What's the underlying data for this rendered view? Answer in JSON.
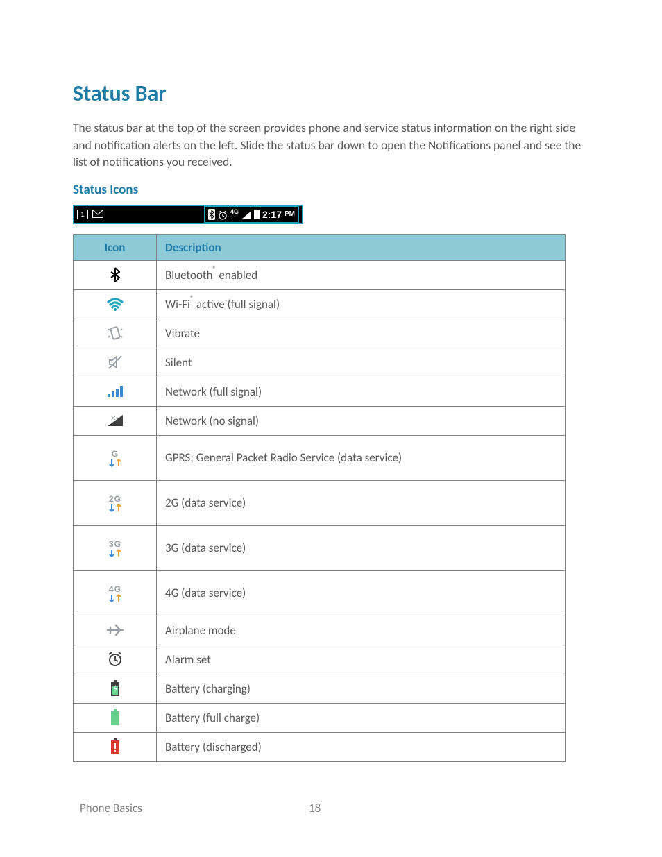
{
  "heading": "Status Bar",
  "intro": "The status bar at the top of the screen provides phone and service status information on the right side and notification alerts on the left. Slide the status bar down to open the Notifications panel and see the list of notifications you received.",
  "subheading": "Status Icons",
  "statusbar": {
    "time": "2:17",
    "ampm": "PM",
    "net_label": "4G"
  },
  "colors": {
    "heading": "#1f7ba6",
    "text": "#595959",
    "table_header_bg": "#8ec9d6",
    "border": "#808080",
    "cyan": "#1fa3bf",
    "signal_blue": "#3b8bd4",
    "green": "#65d08c",
    "red": "#d83a2f",
    "grey_icon": "#9aa0a6"
  },
  "table": {
    "header_icon": "Icon",
    "header_desc": "Description"
  },
  "rows": [
    {
      "icon_name": "bluetooth-icon",
      "desc_pre": "Bluetooth",
      "reg": true,
      "desc_post": " enabled",
      "tall": false
    },
    {
      "icon_name": "wifi-icon",
      "desc_pre": "Wi-Fi",
      "reg": true,
      "desc_post": " active (full signal)",
      "tall": false
    },
    {
      "icon_name": "vibrate-icon",
      "desc_pre": "Vibrate",
      "reg": false,
      "desc_post": "",
      "tall": false
    },
    {
      "icon_name": "silent-icon",
      "desc_pre": "Silent",
      "reg": false,
      "desc_post": "",
      "tall": false
    },
    {
      "icon_name": "signal-full-icon",
      "desc_pre": "Network (full signal)",
      "reg": false,
      "desc_post": "",
      "tall": false
    },
    {
      "icon_name": "signal-none-icon",
      "desc_pre": "Network (no signal)",
      "reg": false,
      "desc_post": "",
      "tall": false
    },
    {
      "icon_name": "gprs-icon",
      "desc_pre": "GPRS; General Packet Radio Service (data service)",
      "reg": false,
      "desc_post": "",
      "tall": true
    },
    {
      "icon_name": "2g-icon",
      "desc_pre": "2G (data service)",
      "reg": false,
      "desc_post": "",
      "tall": true
    },
    {
      "icon_name": "3g-icon",
      "desc_pre": "3G (data service)",
      "reg": false,
      "desc_post": "",
      "tall": true
    },
    {
      "icon_name": "4g-icon",
      "desc_pre": "4G (data service)",
      "reg": false,
      "desc_post": "",
      "tall": true
    },
    {
      "icon_name": "airplane-icon",
      "desc_pre": "Airplane mode",
      "reg": false,
      "desc_post": "",
      "tall": false
    },
    {
      "icon_name": "alarm-icon",
      "desc_pre": "Alarm set",
      "reg": false,
      "desc_post": "",
      "tall": false
    },
    {
      "icon_name": "battery-charging-icon",
      "desc_pre": "Battery (charging)",
      "reg": false,
      "desc_post": "",
      "tall": false
    },
    {
      "icon_name": "battery-full-icon",
      "desc_pre": "Battery (full charge)",
      "reg": false,
      "desc_post": "",
      "tall": false
    },
    {
      "icon_name": "battery-discharged-icon",
      "desc_pre": "Battery (discharged)",
      "reg": false,
      "desc_post": "",
      "tall": false
    }
  ],
  "footer": {
    "section": "Phone Basics",
    "page": "18"
  }
}
